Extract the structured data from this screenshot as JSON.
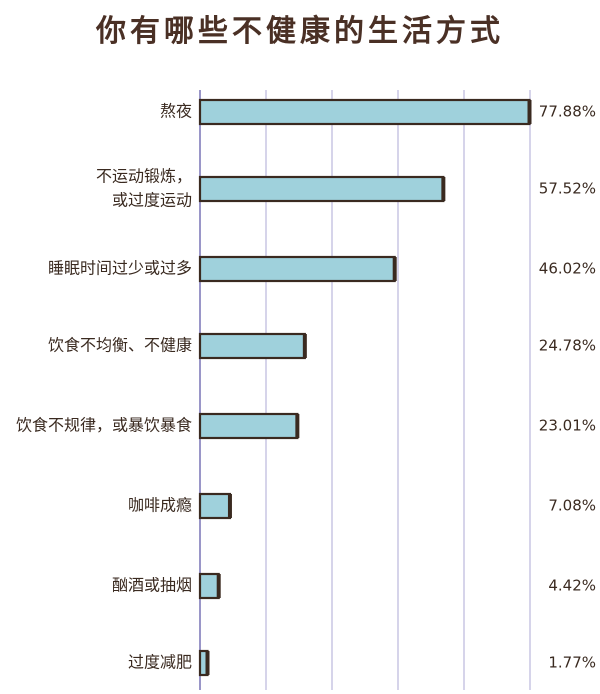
{
  "chart_data": {
    "type": "bar",
    "orientation": "horizontal",
    "title": "你有哪些不健康的生活方式",
    "categories": [
      "熬夜",
      "不运动锻炼，或过度运动",
      "睡眠时间过少或过多",
      "饮食不均衡、不健康",
      "饮食不规律，或暴饮暴食",
      "咖啡成瘾",
      "酗酒或抽烟",
      "过度减肥"
    ],
    "category_lines": [
      [
        "熬夜"
      ],
      [
        "不运动锻炼，",
        "或过度运动"
      ],
      [
        "睡眠时间过少或过多"
      ],
      [
        "饮食不均衡、不健康"
      ],
      [
        "饮食不规律，或暴饮暴食"
      ],
      [
        "咖啡成瘾"
      ],
      [
        "酗酒或抽烟"
      ],
      [
        "过度减肥"
      ]
    ],
    "values": [
      77.88,
      57.52,
      46.02,
      24.78,
      23.01,
      7.08,
      4.42,
      1.77
    ],
    "value_labels": [
      "77.88%",
      "57.52%",
      "46.02%",
      "24.78%",
      "23.01%",
      "7.08%",
      "4.42%",
      "1.77%"
    ],
    "xlim": [
      0,
      78
    ],
    "grid": true,
    "bar_color": "#9fd1dc",
    "bar_edge_color": "#3a2a20",
    "grid_color": "#c9c6e3"
  }
}
